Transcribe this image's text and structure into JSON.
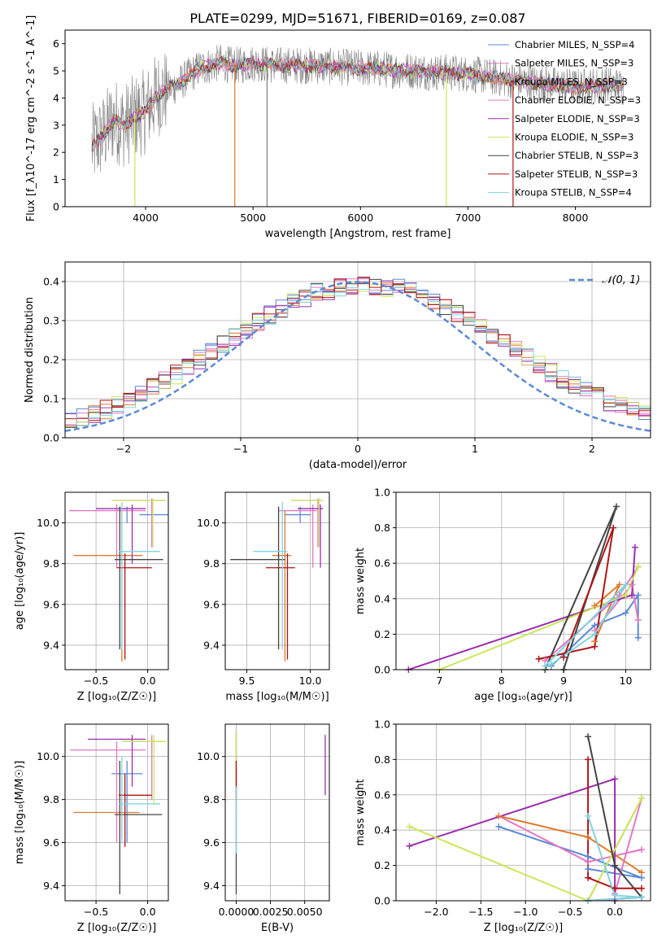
{
  "title": "PLATE=0299, MJD=51671, FIBERID=0169, z=0.087",
  "colors": {
    "C_MILES": "#5b8ad6",
    "S_MILES": "#e377c2",
    "K_MILES": "#e07b2a",
    "C_ELODIE": "#e377c2",
    "S_ELODIE": "#9b2fae",
    "K_ELODIE": "#c9e85a",
    "C_STELIB": "#444444",
    "S_STELIB": "#b01515",
    "K_STELIB": "#7fd3e0",
    "spectrum": "#7f7f7f",
    "gaussian": "#5b8ad6",
    "grid": "#b0b0b0"
  },
  "chart_data": [
    {
      "type": "line",
      "xlabel": "wavelength [Angstrom, rest frame]",
      "ylabel": "Flux [f_λ10^-17 erg cm^-2 s^-1 A^-1]",
      "xlim": [
        3250,
        8700
      ],
      "ylim": [
        0,
        6.5
      ],
      "xticks": [
        4000,
        5000,
        6000,
        7000,
        8000
      ],
      "yticks": [
        0,
        1,
        2,
        3,
        4,
        5,
        6
      ],
      "legend": [
        "Chabrier MILES, N_SSP=4",
        "Salpeter MILES, N_SSP=3",
        "Kroupa MILES, N_SSP=3",
        "Chabrier ELODIE, N_SSP=3",
        "Salpeter ELODIE, N_SSP=3",
        "Kroupa ELODIE, N_SSP=3",
        "Chabrier STELIB, N_SSP=3",
        "Salpeter STELIB, N_SSP=3",
        "Kroupa STELIB, N_SSP=4"
      ],
      "continuum": [
        [
          3500,
          2.2
        ],
        [
          3600,
          2.6
        ],
        [
          3700,
          3.2
        ],
        [
          3800,
          3.0
        ],
        [
          3900,
          3.3
        ],
        [
          4000,
          3.5
        ],
        [
          4100,
          4.1
        ],
        [
          4200,
          4.3
        ],
        [
          4300,
          4.5
        ],
        [
          4400,
          4.8
        ],
        [
          4500,
          5.1
        ],
        [
          4600,
          5.2
        ],
        [
          4700,
          5.3
        ],
        [
          4800,
          5.2
        ],
        [
          4900,
          5.2
        ],
        [
          5000,
          5.3
        ],
        [
          5200,
          5.2
        ],
        [
          5500,
          5.2
        ],
        [
          6000,
          5.1
        ],
        [
          6500,
          5.0
        ],
        [
          7000,
          4.9
        ],
        [
          7500,
          4.6
        ],
        [
          8000,
          4.4
        ],
        [
          8300,
          4.5
        ],
        [
          8450,
          4.4
        ]
      ],
      "series": [
        {
          "name": "data",
          "color": "spectrum"
        },
        {
          "name": "Chabrier MILES, N_SSP=4",
          "color": "C_MILES"
        },
        {
          "name": "Salpeter MILES, N_SSP=3",
          "color": "S_MILES"
        },
        {
          "name": "Kroupa MILES, N_SSP=3",
          "color": "K_MILES"
        },
        {
          "name": "Chabrier ELODIE, N_SSP=3",
          "color": "C_ELODIE"
        },
        {
          "name": "Salpeter ELODIE, N_SSP=3",
          "color": "S_ELODIE"
        },
        {
          "name": "Kroupa ELODIE, N_SSP=3",
          "color": "K_ELODIE"
        },
        {
          "name": "Chabrier STELIB, N_SSP=3",
          "color": "C_STELIB"
        },
        {
          "name": "Salpeter STELIB, N_SSP=3",
          "color": "S_STELIB"
        },
        {
          "name": "Kroupa STELIB, N_SSP=4",
          "color": "K_STELIB"
        }
      ],
      "dropouts": [
        [
          4830,
          "K_MILES"
        ],
        [
          5130,
          "spectrum"
        ],
        [
          6800,
          "K_ELODIE"
        ],
        [
          7420,
          "S_STELIB"
        ],
        [
          3900,
          "K_ELODIE"
        ]
      ]
    },
    {
      "type": "histogram",
      "xlabel": "(data-model)/error",
      "ylabel": "Normed distribution",
      "xlim": [
        -2.5,
        2.5
      ],
      "ylim": [
        0,
        0.45
      ],
      "xticks": [
        -2,
        -1,
        0,
        1,
        2
      ],
      "xticklabels": [
        "−2",
        "−1",
        "0",
        "1",
        "2"
      ],
      "yticks": [
        0.0,
        0.1,
        0.2,
        0.3,
        0.4
      ],
      "bin_width": 0.1,
      "legend": [
        "𝒩(0, 1)"
      ]
    },
    {
      "type": "errorbar",
      "xlabel": "Z [log10(Z/Z⊙)]",
      "ylabel": "age  [log10(age/yr)]",
      "xlim": [
        -0.8,
        0.2
      ],
      "ylim": [
        9.28,
        10.15
      ],
      "xticks": [
        -0.5,
        0.0
      ],
      "xticklabels": [
        "−0.5",
        "0.0"
      ],
      "yticks": [
        9.4,
        9.6,
        9.8,
        10.0
      ],
      "points": [
        {
          "c": "C_MILES",
          "x": -0.2,
          "xe": [
            0.28,
            -0.08
          ],
          "y": 10.04,
          "ye": [
            10.08,
            10.0
          ]
        },
        {
          "c": "S_MILES",
          "x": -0.3,
          "xe": [
            -0.76,
            -0.02
          ],
          "y": 10.06,
          "ye": [
            10.09,
            9.78
          ]
        },
        {
          "c": "K_MILES",
          "x": -0.25,
          "xe": [
            -0.72,
            -0.05
          ],
          "y": 9.84,
          "ye": [
            10.06,
            9.32
          ]
        },
        {
          "c": "C_ELODIE",
          "x": 0.04,
          "xe": [
            -0.33,
            0.16
          ],
          "y": 10.11,
          "ye": [
            10.12,
            9.88
          ]
        },
        {
          "c": "S_ELODIE",
          "x": -0.15,
          "xe": [
            -0.5,
            -0.02
          ],
          "y": 10.07,
          "ye": [
            10.09,
            9.8
          ]
        },
        {
          "c": "K_ELODIE",
          "x": 0.05,
          "xe": [
            -0.35,
            0.18
          ],
          "y": 10.11,
          "ye": [
            10.12,
            9.88
          ]
        },
        {
          "c": "C_STELIB",
          "x": -0.27,
          "xe": [
            -0.32,
            0.15
          ],
          "y": 9.82,
          "ye": [
            10.08,
            9.38
          ]
        },
        {
          "c": "S_STELIB",
          "x": -0.22,
          "xe": [
            -0.3,
            0.04
          ],
          "y": 9.78,
          "ye": [
            9.85,
            9.33
          ]
        },
        {
          "c": "K_STELIB",
          "x": -0.25,
          "xe": [
            -0.28,
            0.12
          ],
          "y": 9.86,
          "ye": [
            10.1,
            9.38
          ]
        }
      ]
    },
    {
      "type": "errorbar",
      "xlabel": "mass [log10(M/M⊙)]",
      "xlim": [
        9.33,
        10.15
      ],
      "ylim": [
        9.28,
        10.15
      ],
      "xticks": [
        9.5,
        10.0
      ],
      "xticklabels": [
        "9.5",
        "10.0"
      ],
      "yticks": [
        9.4,
        9.6,
        9.8,
        10.0
      ],
      "points": [
        {
          "c": "C_MILES",
          "x": 9.92,
          "xe": [
            9.8,
            10.0
          ],
          "y": 10.04,
          "ye": [
            10.08,
            10.0
          ]
        },
        {
          "c": "S_MILES",
          "x": 10.02,
          "xe": [
            9.75,
            10.05
          ],
          "y": 10.06,
          "ye": [
            10.09,
            9.78
          ]
        },
        {
          "c": "K_MILES",
          "x": 9.8,
          "xe": [
            9.7,
            9.85
          ],
          "y": 9.84,
          "ye": [
            10.06,
            9.32
          ]
        },
        {
          "c": "C_ELODIE",
          "x": 10.06,
          "xe": [
            9.85,
            10.1
          ],
          "y": 10.11,
          "ye": [
            10.12,
            9.88
          ]
        },
        {
          "c": "S_ELODIE",
          "x": 10.08,
          "xe": [
            9.9,
            10.1
          ],
          "y": 10.07,
          "ye": [
            10.09,
            9.78
          ]
        },
        {
          "c": "K_ELODIE",
          "x": 10.07,
          "xe": [
            9.85,
            10.1
          ],
          "y": 10.11,
          "ye": [
            10.12,
            9.88
          ]
        },
        {
          "c": "C_STELIB",
          "x": 9.75,
          "xe": [
            9.37,
            9.8
          ],
          "y": 9.82,
          "ye": [
            10.08,
            9.38
          ]
        },
        {
          "c": "S_STELIB",
          "x": 9.82,
          "xe": [
            9.65,
            9.88
          ],
          "y": 9.78,
          "ye": [
            9.85,
            9.33
          ]
        },
        {
          "c": "K_STELIB",
          "x": 9.78,
          "xe": [
            9.55,
            9.82
          ],
          "y": 9.86,
          "ye": [
            10.1,
            9.38
          ]
        }
      ]
    },
    {
      "type": "line",
      "xlabel": "age  [log10(age/yr)]",
      "ylabel": "mass weight",
      "xlim": [
        6.3,
        10.4
      ],
      "ylim": [
        0,
        1.0
      ],
      "xticks": [
        7,
        8,
        9,
        10
      ],
      "yticks": [
        0.0,
        0.2,
        0.4,
        0.6,
        0.8,
        1.0
      ],
      "series": [
        {
          "c": "C_MILES",
          "pts": [
            [
              8.8,
              0.02
            ],
            [
              9.5,
              0.25
            ],
            [
              10.0,
              0.32
            ],
            [
              10.2,
              0.42
            ],
            [
              10.2,
              0.18
            ]
          ]
        },
        {
          "c": "S_MILES",
          "pts": [
            [
              9.5,
              0.22
            ],
            [
              10.1,
              0.48
            ],
            [
              10.2,
              0.28
            ]
          ]
        },
        {
          "c": "K_MILES",
          "pts": [
            [
              9.5,
              0.36
            ],
            [
              9.9,
              0.48
            ],
            [
              9.5,
              0.16
            ]
          ]
        },
        {
          "c": "C_ELODIE",
          "pts": [
            [
              8.7,
              0.05
            ],
            [
              9.9,
              0.42
            ],
            [
              10.2,
              0.58
            ]
          ]
        },
        {
          "c": "S_ELODIE",
          "pts": [
            [
              6.5,
              0.0
            ],
            [
              10.1,
              0.42
            ],
            [
              10.15,
              0.69
            ]
          ]
        },
        {
          "c": "K_ELODIE",
          "pts": [
            [
              7.0,
              0.0
            ],
            [
              10.0,
              0.42
            ],
            [
              10.2,
              0.58
            ]
          ]
        },
        {
          "c": "C_STELIB",
          "pts": [
            [
              8.7,
              0.0
            ],
            [
              9.85,
              0.92
            ],
            [
              9.0,
              0.0
            ]
          ]
        },
        {
          "c": "S_STELIB",
          "pts": [
            [
              8.6,
              0.06
            ],
            [
              9.5,
              0.13
            ],
            [
              9.8,
              0.8
            ],
            [
              9.0,
              0.07
            ]
          ]
        },
        {
          "c": "K_STELIB",
          "pts": [
            [
              8.7,
              0.02
            ],
            [
              10.0,
              0.48
            ],
            [
              9.5,
              0.2
            ],
            [
              8.8,
              0.03
            ]
          ]
        }
      ]
    },
    {
      "type": "errorbar",
      "xlabel": "Z [log10(Z/Z⊙)]",
      "ylabel": "mass [log10(M/M⊙)]",
      "xlim": [
        -0.8,
        0.2
      ],
      "ylim": [
        9.33,
        10.15
      ],
      "xticks": [
        -0.5,
        0.0
      ],
      "xticklabels": [
        "−0.5",
        "0.0"
      ],
      "yticks": [
        9.4,
        9.6,
        9.8,
        10.0
      ],
      "points": [
        {
          "c": "C_MILES",
          "x": -0.2,
          "xe": [
            -0.35,
            -0.05
          ],
          "y": 9.92,
          "ye": [
            9.98,
            9.6
          ]
        },
        {
          "c": "S_MILES",
          "x": -0.3,
          "xe": [
            -0.75,
            -0.02
          ],
          "y": 10.03,
          "ye": [
            10.07,
            9.6
          ]
        },
        {
          "c": "K_MILES",
          "x": -0.25,
          "xe": [
            -0.72,
            -0.08
          ],
          "y": 9.74,
          "ye": [
            9.83,
            9.62
          ]
        },
        {
          "c": "C_ELODIE",
          "x": 0.04,
          "xe": [
            -0.2,
            0.16
          ],
          "y": 10.07,
          "ye": [
            10.1,
            9.8
          ]
        },
        {
          "c": "S_ELODIE",
          "x": -0.15,
          "xe": [
            -0.58,
            -0.02
          ],
          "y": 10.08,
          "ye": [
            10.1,
            9.86
          ]
        },
        {
          "c": "K_ELODIE",
          "x": 0.06,
          "xe": [
            -0.25,
            0.18
          ],
          "y": 10.07,
          "ye": [
            10.1,
            9.78
          ]
        },
        {
          "c": "C_STELIB",
          "x": -0.27,
          "xe": [
            -0.32,
            0.14
          ],
          "y": 9.73,
          "ye": [
            9.98,
            9.36
          ]
        },
        {
          "c": "S_STELIB",
          "x": -0.22,
          "xe": [
            -0.28,
            0.04
          ],
          "y": 9.82,
          "ye": [
            9.92,
            9.58
          ]
        },
        {
          "c": "K_STELIB",
          "x": -0.25,
          "xe": [
            -0.28,
            0.12
          ],
          "y": 9.78,
          "ye": [
            10.0,
            9.6
          ]
        }
      ]
    },
    {
      "type": "errorbar",
      "xlabel": "E(B-V)",
      "xlim": [
        -0.0008,
        0.0068
      ],
      "ylim": [
        9.33,
        10.15
      ],
      "xticks": [
        0.0,
        0.0025,
        0.005
      ],
      "xticklabels": [
        "0.0000",
        "0.0025",
        "0.0050"
      ],
      "yticks": [
        9.4,
        9.6,
        9.8,
        10.0
      ],
      "points": [
        {
          "c": "C_STELIB",
          "x": 0.0,
          "y": 9.7,
          "ye": [
            10.12,
            9.36
          ]
        },
        {
          "c": "K_ELODIE",
          "x": 0.0,
          "y": 9.9,
          "ye": [
            10.12,
            9.76
          ]
        },
        {
          "c": "S_STELIB",
          "x": 0.0,
          "y": 9.85,
          "ye": [
            9.98,
            9.8
          ]
        },
        {
          "c": "K_STELIB",
          "x": 0.0,
          "y": 9.7,
          "ye": [
            9.86,
            9.55
          ]
        },
        {
          "c": "S_ELODIE",
          "x": 0.0065,
          "y": 9.95,
          "ye": [
            10.1,
            9.82
          ]
        }
      ]
    },
    {
      "type": "line",
      "xlabel": "Z [log10(Z/Z⊙)]",
      "ylabel": "mass weight",
      "xlim": [
        -2.45,
        0.4
      ],
      "ylim": [
        0,
        1.0
      ],
      "xticks": [
        -2.0,
        -1.5,
        -1.0,
        -0.5,
        0.0
      ],
      "xticklabels": [
        "−2.0",
        "−1.5",
        "−1.0",
        "−0.5",
        "0.0"
      ],
      "yticks": [
        0.0,
        0.2,
        0.4,
        0.6,
        0.8,
        1.0
      ],
      "series": [
        {
          "c": "C_MILES",
          "pts": [
            [
              -1.3,
              0.42
            ],
            [
              -0.3,
              0.25
            ],
            [
              0.3,
              0.13
            ],
            [
              -0.3,
              0.18
            ]
          ]
        },
        {
          "c": "S_MILES",
          "pts": [
            [
              -1.3,
              0.48
            ],
            [
              -0.3,
              0.22
            ],
            [
              0.3,
              0.29
            ]
          ]
        },
        {
          "c": "K_MILES",
          "pts": [
            [
              -1.3,
              0.48
            ],
            [
              -0.3,
              0.36
            ],
            [
              0.3,
              0.16
            ]
          ]
        },
        {
          "c": "C_ELODIE",
          "pts": [
            [
              -0.3,
              0.0
            ],
            [
              0.3,
              0.58
            ],
            [
              0.0,
              0.04
            ]
          ]
        },
        {
          "c": "S_ELODIE",
          "pts": [
            [
              -2.3,
              0.31
            ],
            [
              0.0,
              0.69
            ],
            [
              0.0,
              0.0
            ]
          ]
        },
        {
          "c": "K_ELODIE",
          "pts": [
            [
              -2.3,
              0.42
            ],
            [
              -0.3,
              0.0
            ],
            [
              0.3,
              0.58
            ]
          ]
        },
        {
          "c": "C_STELIB",
          "pts": [
            [
              -0.3,
              0.93
            ],
            [
              0.0,
              0.2
            ],
            [
              0.3,
              0.02
            ],
            [
              -0.3,
              0.0
            ]
          ]
        },
        {
          "c": "S_STELIB",
          "pts": [
            [
              -0.3,
              0.8
            ],
            [
              -0.3,
              0.13
            ],
            [
              0.0,
              0.07
            ],
            [
              0.3,
              0.07
            ]
          ]
        },
        {
          "c": "K_STELIB",
          "pts": [
            [
              -0.3,
              0.48
            ],
            [
              0.0,
              0.03
            ],
            [
              0.3,
              0.02
            ],
            [
              -0.3,
              0.0
            ]
          ]
        }
      ]
    }
  ]
}
